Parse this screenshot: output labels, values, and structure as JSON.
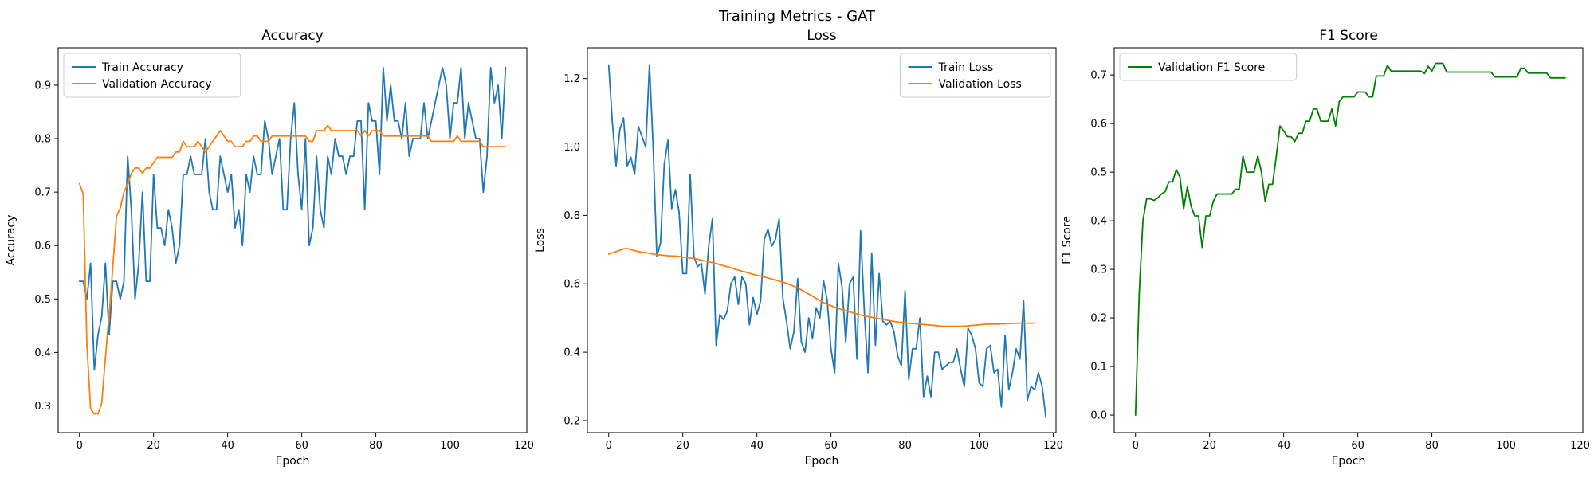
{
  "figure_title": "Training Metrics - GAT",
  "chart_data": [
    {
      "type": "line",
      "title": "Accuracy",
      "xlabel": "Epoch",
      "ylabel": "Accuracy",
      "xlim": [
        -5.75,
        120.75
      ],
      "ylim": [
        0.25,
        0.97
      ],
      "xticks": [
        0,
        20,
        40,
        60,
        80,
        100,
        120
      ],
      "yticks": [
        0.3,
        0.4,
        0.5,
        0.6,
        0.7,
        0.8,
        0.9
      ],
      "tick_decimals": 1,
      "legend_position": "upper-left",
      "series": [
        {
          "name": "Train Accuracy",
          "color": "#1f77b4",
          "x_start": 0,
          "values": [
            0.533,
            0.533,
            0.5,
            0.567,
            0.367,
            0.433,
            0.467,
            0.567,
            0.433,
            0.533,
            0.533,
            0.5,
            0.533,
            0.767,
            0.667,
            0.5,
            0.567,
            0.7,
            0.533,
            0.533,
            0.733,
            0.633,
            0.633,
            0.6,
            0.667,
            0.633,
            0.567,
            0.6,
            0.733,
            0.733,
            0.767,
            0.733,
            0.733,
            0.733,
            0.8,
            0.7,
            0.667,
            0.667,
            0.767,
            0.733,
            0.7,
            0.733,
            0.633,
            0.667,
            0.6,
            0.733,
            0.7,
            0.767,
            0.733,
            0.733,
            0.833,
            0.8,
            0.733,
            0.767,
            0.8,
            0.667,
            0.667,
            0.8,
            0.867,
            0.733,
            0.667,
            0.8,
            0.6,
            0.633,
            0.767,
            0.667,
            0.633,
            0.767,
            0.733,
            0.8,
            0.767,
            0.767,
            0.733,
            0.767,
            0.767,
            0.833,
            0.833,
            0.667,
            0.867,
            0.833,
            0.833,
            0.733,
            0.933,
            0.833,
            0.9,
            0.833,
            0.833,
            0.8,
            0.867,
            0.767,
            0.8,
            0.8,
            0.8,
            0.867,
            0.8,
            0.833,
            0.867,
            0.9,
            0.933,
            0.9,
            0.8,
            0.867,
            0.867,
            0.933,
            0.8,
            0.867,
            0.833,
            0.8,
            0.8,
            0.7,
            0.767,
            0.933,
            0.867,
            0.9,
            0.8,
            0.933
          ]
        },
        {
          "name": "Validation Accuracy",
          "color": "#ff7f0e",
          "x_start": 0,
          "values": [
            0.716,
            0.697,
            0.415,
            0.295,
            0.285,
            0.285,
            0.305,
            0.39,
            0.47,
            0.56,
            0.655,
            0.67,
            0.7,
            0.715,
            0.735,
            0.745,
            0.745,
            0.735,
            0.745,
            0.745,
            0.755,
            0.765,
            0.765,
            0.765,
            0.765,
            0.765,
            0.775,
            0.775,
            0.795,
            0.785,
            0.785,
            0.785,
            0.795,
            0.785,
            0.775,
            0.785,
            0.795,
            0.805,
            0.815,
            0.805,
            0.795,
            0.795,
            0.785,
            0.785,
            0.785,
            0.795,
            0.795,
            0.805,
            0.805,
            0.795,
            0.795,
            0.795,
            0.805,
            0.805,
            0.805,
            0.805,
            0.805,
            0.805,
            0.805,
            0.805,
            0.805,
            0.805,
            0.795,
            0.795,
            0.815,
            0.815,
            0.815,
            0.825,
            0.815,
            0.815,
            0.815,
            0.815,
            0.815,
            0.815,
            0.815,
            0.815,
            0.805,
            0.815,
            0.805,
            0.815,
            0.815,
            0.815,
            0.805,
            0.805,
            0.805,
            0.805,
            0.805,
            0.805,
            0.805,
            0.805,
            0.805,
            0.805,
            0.805,
            0.805,
            0.805,
            0.795,
            0.795,
            0.795,
            0.795,
            0.795,
            0.795,
            0.795,
            0.805,
            0.795,
            0.795,
            0.795,
            0.795,
            0.795,
            0.795,
            0.785,
            0.785,
            0.785,
            0.785,
            0.785,
            0.785,
            0.785
          ]
        }
      ]
    },
    {
      "type": "line",
      "title": "Loss",
      "xlabel": "Epoch",
      "ylabel": "Loss",
      "xlim": [
        -5.75,
        120.75
      ],
      "ylim": [
        0.165,
        1.29
      ],
      "xticks": [
        0,
        20,
        40,
        60,
        80,
        100,
        120
      ],
      "yticks": [
        0.2,
        0.4,
        0.6,
        0.8,
        1.0,
        1.2
      ],
      "tick_decimals": 1,
      "legend_position": "upper-right",
      "series": [
        {
          "name": "Train Loss",
          "color": "#1f77b4",
          "x_start": 0,
          "values": [
            1.24,
            1.07,
            0.945,
            1.05,
            1.085,
            0.945,
            0.97,
            0.92,
            1.06,
            1.03,
            1.0,
            1.24,
            1.0,
            0.68,
            0.72,
            0.95,
            1.02,
            0.82,
            0.875,
            0.81,
            0.63,
            0.63,
            0.92,
            0.68,
            0.65,
            0.66,
            0.57,
            0.71,
            0.79,
            0.42,
            0.51,
            0.495,
            0.52,
            0.6,
            0.62,
            0.54,
            0.62,
            0.6,
            0.48,
            0.56,
            0.51,
            0.55,
            0.73,
            0.76,
            0.71,
            0.73,
            0.79,
            0.56,
            0.49,
            0.41,
            0.46,
            0.615,
            0.43,
            0.4,
            0.5,
            0.44,
            0.53,
            0.5,
            0.61,
            0.55,
            0.41,
            0.34,
            0.66,
            0.59,
            0.43,
            0.6,
            0.62,
            0.38,
            0.755,
            0.52,
            0.34,
            0.69,
            0.42,
            0.63,
            0.49,
            0.48,
            0.49,
            0.46,
            0.39,
            0.36,
            0.58,
            0.32,
            0.41,
            0.41,
            0.5,
            0.27,
            0.33,
            0.27,
            0.4,
            0.4,
            0.35,
            0.36,
            0.37,
            0.37,
            0.41,
            0.35,
            0.3,
            0.47,
            0.45,
            0.41,
            0.31,
            0.3,
            0.41,
            0.42,
            0.34,
            0.35,
            0.24,
            0.45,
            0.29,
            0.34,
            0.41,
            0.38,
            0.55,
            0.26,
            0.3,
            0.29,
            0.34,
            0.3,
            0.21
          ]
        },
        {
          "name": "Validation Loss",
          "color": "#ff7f0e",
          "x_start": 0,
          "values": [
            0.687,
            0.69,
            0.694,
            0.698,
            0.702,
            0.703,
            0.7,
            0.697,
            0.694,
            0.692,
            0.691,
            0.689,
            0.687,
            0.685,
            0.684,
            0.683,
            0.682,
            0.681,
            0.681,
            0.68,
            0.678,
            0.677,
            0.675,
            0.674,
            0.672,
            0.669,
            0.667,
            0.664,
            0.662,
            0.659,
            0.656,
            0.653,
            0.65,
            0.647,
            0.643,
            0.64,
            0.637,
            0.634,
            0.631,
            0.628,
            0.625,
            0.622,
            0.62,
            0.617,
            0.614,
            0.611,
            0.608,
            0.605,
            0.602,
            0.597,
            0.593,
            0.588,
            0.582,
            0.576,
            0.57,
            0.564,
            0.557,
            0.551,
            0.545,
            0.54,
            0.536,
            0.532,
            0.528,
            0.524,
            0.521,
            0.518,
            0.515,
            0.512,
            0.509,
            0.506,
            0.504,
            0.502,
            0.5,
            0.498,
            0.496,
            0.494,
            0.492,
            0.49,
            0.488,
            0.487,
            0.486,
            0.485,
            0.484,
            0.483,
            0.482,
            0.481,
            0.48,
            0.479,
            0.478,
            0.477,
            0.476,
            0.476,
            0.476,
            0.476,
            0.476,
            0.476,
            0.476,
            0.477,
            0.478,
            0.479,
            0.48,
            0.481,
            0.482,
            0.482,
            0.482,
            0.482,
            0.483,
            0.483,
            0.484,
            0.484,
            0.485,
            0.485,
            0.485,
            0.485,
            0.485,
            0.485
          ]
        }
      ]
    },
    {
      "type": "line",
      "title": "F1 Score",
      "xlabel": "Epoch",
      "ylabel": "F1 Score",
      "xlim": [
        -5.75,
        120.75
      ],
      "ylim": [
        -0.036,
        0.756
      ],
      "xticks": [
        0,
        20,
        40,
        60,
        80,
        100,
        120
      ],
      "yticks": [
        0.0,
        0.1,
        0.2,
        0.3,
        0.4,
        0.5,
        0.6,
        0.7
      ],
      "tick_decimals": 1,
      "legend_position": "upper-left",
      "series": [
        {
          "name": "Validation F1 Score",
          "color": "#008000",
          "x_start": 0,
          "values": [
            0.0,
            0.25,
            0.4,
            0.445,
            0.445,
            0.442,
            0.447,
            0.455,
            0.46,
            0.48,
            0.48,
            0.505,
            0.49,
            0.425,
            0.47,
            0.43,
            0.41,
            0.41,
            0.345,
            0.41,
            0.41,
            0.44,
            0.455,
            0.455,
            0.455,
            0.455,
            0.455,
            0.465,
            0.465,
            0.533,
            0.5,
            0.5,
            0.5,
            0.533,
            0.5,
            0.44,
            0.475,
            0.475,
            0.533,
            0.595,
            0.585,
            0.573,
            0.573,
            0.563,
            0.58,
            0.58,
            0.605,
            0.605,
            0.63,
            0.63,
            0.605,
            0.605,
            0.605,
            0.63,
            0.595,
            0.645,
            0.655,
            0.655,
            0.655,
            0.655,
            0.665,
            0.665,
            0.665,
            0.655,
            0.655,
            0.698,
            0.698,
            0.698,
            0.72,
            0.708,
            0.708,
            0.708,
            0.708,
            0.708,
            0.708,
            0.708,
            0.708,
            0.708,
            0.703,
            0.718,
            0.708,
            0.724,
            0.724,
            0.724,
            0.706,
            0.706,
            0.706,
            0.706,
            0.706,
            0.706,
            0.706,
            0.706,
            0.706,
            0.706,
            0.706,
            0.706,
            0.706,
            0.696,
            0.696,
            0.696,
            0.696,
            0.696,
            0.696,
            0.696,
            0.714,
            0.714,
            0.704,
            0.704,
            0.704,
            0.704,
            0.704,
            0.704,
            0.694,
            0.694,
            0.694,
            0.694,
            0.694
          ]
        }
      ]
    }
  ]
}
